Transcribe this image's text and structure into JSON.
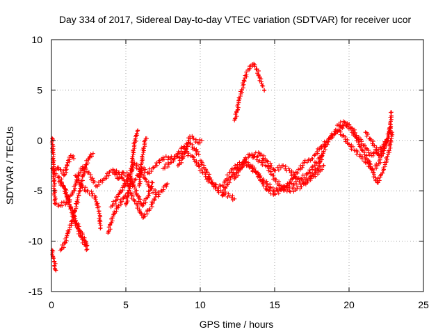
{
  "chart_data": {
    "type": "scatter",
    "title": "Day 334 of 2017, Sidereal Day-to-day VTEC variation (SDTVAR) for receiver ucor",
    "xlabel": "GPS time / hours",
    "ylabel": "SDTVAR / TECUs",
    "xlim": [
      0,
      25
    ],
    "ylim": [
      -15,
      10
    ],
    "x_ticks": [
      "0",
      "5",
      "10",
      "15",
      "20",
      "25"
    ],
    "y_ticks": [
      "10",
      "5",
      "0",
      "-5",
      "-10",
      "-15"
    ],
    "grid": true,
    "marker": "plus",
    "colors": {
      "series": "#ff0000",
      "grid": "#a0a0a0",
      "axes": "#000000"
    },
    "series": [
      {
        "name": "s1",
        "points": [
          [
            0.05,
            0.2
          ],
          [
            0.1,
            -1.0
          ],
          [
            0.15,
            -3.0
          ],
          [
            0.2,
            -5.0
          ],
          [
            0.25,
            -6.3
          ],
          [
            0.5,
            -6.4
          ],
          [
            1.0,
            -6.2
          ],
          [
            1.5,
            -5.0
          ],
          [
            1.8,
            -3.5
          ],
          [
            2.1,
            -2.6
          ],
          [
            2.5,
            -3.2
          ],
          [
            3.0,
            -4.5
          ],
          [
            3.6,
            -3.8
          ],
          [
            4.0,
            -3.0
          ],
          [
            4.5,
            -3.2
          ],
          [
            4.9,
            -4.0
          ],
          [
            5.3,
            -4.6
          ],
          [
            5.8,
            -3.5
          ],
          [
            6.1,
            -2.8
          ],
          [
            6.5,
            -3.2
          ],
          [
            7.0,
            -2.5
          ],
          [
            7.5,
            -1.7
          ],
          [
            8.0,
            -1.8
          ],
          [
            8.5,
            -1.6
          ],
          [
            9.0,
            -1.2
          ],
          [
            9.5,
            -1.6
          ],
          [
            9.9,
            -2.6
          ],
          [
            10.5,
            -3.8
          ],
          [
            11.0,
            -4.6
          ],
          [
            11.5,
            -4.5
          ],
          [
            12.0,
            -3.2
          ],
          [
            12.5,
            -2.4
          ],
          [
            13.0,
            -2.2
          ],
          [
            13.5,
            -2.8
          ],
          [
            14.0,
            -3.6
          ],
          [
            14.5,
            -4.3
          ],
          [
            15.0,
            -5.0
          ],
          [
            15.5,
            -4.8
          ],
          [
            16.0,
            -4.2
          ],
          [
            16.5,
            -3.2
          ],
          [
            17.0,
            -2.2
          ],
          [
            17.5,
            -1.8
          ],
          [
            18.0,
            -0.9
          ],
          [
            18.5,
            -0.1
          ],
          [
            19.0,
            0.6
          ],
          [
            19.5,
            1.3
          ],
          [
            20.0,
            1.6
          ],
          [
            20.5,
            0.5
          ],
          [
            21.0,
            -0.5
          ],
          [
            21.5,
            -1.5
          ],
          [
            22.0,
            -0.9
          ],
          [
            22.5,
            -0.2
          ],
          [
            22.75,
            1.0
          ],
          [
            22.85,
            2.8
          ]
        ]
      },
      {
        "name": "s2",
        "points": [
          [
            0.05,
            -10.9
          ],
          [
            0.1,
            -11.5
          ],
          [
            0.2,
            -12.0
          ],
          [
            0.25,
            -12.8
          ],
          [
            0.3,
            -12.9
          ]
        ]
      },
      {
        "name": "s3",
        "points": [
          [
            0.05,
            -2.8
          ],
          [
            0.2,
            -3.3
          ],
          [
            0.5,
            -3.6
          ],
          [
            0.9,
            -4.8
          ],
          [
            1.3,
            -6.6
          ],
          [
            1.7,
            -8.2
          ],
          [
            2.0,
            -9.2
          ],
          [
            2.3,
            -10.0
          ],
          [
            2.4,
            -10.4
          ]
        ]
      },
      {
        "name": "s4",
        "points": [
          [
            0.2,
            -3.0
          ],
          [
            0.4,
            -2.7
          ],
          [
            0.6,
            -2.9
          ],
          [
            0.9,
            -3.4
          ],
          [
            1.1,
            -2.2
          ],
          [
            1.3,
            -1.5
          ],
          [
            1.5,
            -1.8
          ]
        ]
      },
      {
        "name": "s5",
        "points": [
          [
            0.6,
            -10.9
          ],
          [
            0.9,
            -10.2
          ],
          [
            1.1,
            -9.2
          ],
          [
            1.4,
            -8.0
          ],
          [
            1.7,
            -6.3
          ],
          [
            1.9,
            -5.0
          ],
          [
            2.1,
            -3.6
          ],
          [
            2.3,
            -2.4
          ],
          [
            2.6,
            -1.6
          ],
          [
            2.8,
            -1.3
          ]
        ]
      },
      {
        "name": "s6",
        "points": [
          [
            0.5,
            -4.1
          ],
          [
            0.8,
            -4.5
          ],
          [
            1.1,
            -5.8
          ],
          [
            1.4,
            -7.3
          ],
          [
            1.7,
            -8.6
          ],
          [
            2.0,
            -9.6
          ],
          [
            2.3,
            -10.5
          ],
          [
            2.4,
            -10.8
          ]
        ]
      },
      {
        "name": "s7",
        "points": [
          [
            1.6,
            -3.5
          ],
          [
            2.0,
            -4.5
          ],
          [
            2.4,
            -5.0
          ],
          [
            2.9,
            -5.5
          ],
          [
            3.2,
            -7.0
          ],
          [
            3.3,
            -8.7
          ]
        ]
      },
      {
        "name": "s8",
        "points": [
          [
            3.8,
            -9.2
          ],
          [
            4.0,
            -8.2
          ],
          [
            4.2,
            -7.3
          ],
          [
            4.5,
            -6.5
          ],
          [
            4.9,
            -5.6
          ],
          [
            5.3,
            -5.2
          ],
          [
            5.7,
            -6.3
          ],
          [
            6.0,
            -7.2
          ],
          [
            6.2,
            -7.6
          ],
          [
            6.6,
            -6.8
          ],
          [
            7.0,
            -5.6
          ],
          [
            7.4,
            -5.0
          ],
          [
            7.8,
            -4.3
          ]
        ]
      },
      {
        "name": "s9",
        "points": [
          [
            4.0,
            -6.6
          ],
          [
            4.3,
            -6.0
          ],
          [
            4.6,
            -5.2
          ],
          [
            5.0,
            -4.3
          ],
          [
            5.3,
            -3.0
          ],
          [
            5.6,
            -2.3
          ],
          [
            6.0,
            -3.0
          ],
          [
            6.3,
            -3.8
          ],
          [
            6.7,
            -4.8
          ],
          [
            7.0,
            -5.2
          ]
        ]
      },
      {
        "name": "s10",
        "points": [
          [
            4.2,
            -3.0
          ],
          [
            4.5,
            -3.8
          ],
          [
            4.8,
            -3.2
          ],
          [
            5.2,
            -3.5
          ],
          [
            5.5,
            -4.4
          ],
          [
            5.8,
            -5.5
          ],
          [
            6.1,
            -6.5
          ],
          [
            6.5,
            -5.5
          ],
          [
            6.8,
            -4.2
          ]
        ]
      },
      {
        "name": "s11",
        "points": [
          [
            5.0,
            -6.4
          ],
          [
            5.2,
            -5.0
          ],
          [
            5.4,
            -3.0
          ],
          [
            5.5,
            -1.0
          ],
          [
            5.6,
            -0.2
          ],
          [
            5.7,
            0.5
          ],
          [
            5.8,
            1.0
          ]
        ]
      },
      {
        "name": "s12",
        "points": [
          [
            5.9,
            -4.5
          ],
          [
            6.0,
            -3.0
          ],
          [
            6.1,
            -1.8
          ],
          [
            6.2,
            -0.8
          ],
          [
            6.3,
            0.0
          ],
          [
            6.4,
            0.2
          ]
        ]
      },
      {
        "name": "s13",
        "points": [
          [
            7.5,
            -2.8
          ],
          [
            8.0,
            -2.2
          ],
          [
            8.5,
            -1.3
          ],
          [
            8.9,
            -0.6
          ],
          [
            9.3,
            -0.3
          ],
          [
            9.6,
            -0.8
          ],
          [
            9.9,
            -1.4
          ]
        ]
      },
      {
        "name": "s14",
        "points": [
          [
            8.5,
            -2.5
          ],
          [
            8.8,
            -1.8
          ],
          [
            9.1,
            -0.6
          ],
          [
            9.3,
            0.4
          ],
          [
            9.5,
            0.2
          ],
          [
            9.8,
            -0.2
          ],
          [
            10.1,
            0.0
          ]
        ]
      },
      {
        "name": "s15",
        "points": [
          [
            10.0,
            -2.0
          ],
          [
            10.4,
            -3.0
          ],
          [
            10.8,
            -4.2
          ],
          [
            11.2,
            -5.0
          ],
          [
            11.6,
            -5.4
          ],
          [
            12.0,
            -5.5
          ],
          [
            12.3,
            -5.8
          ]
        ]
      },
      {
        "name": "s16",
        "points": [
          [
            11.5,
            -5.5
          ],
          [
            11.8,
            -4.4
          ],
          [
            12.2,
            -3.4
          ],
          [
            12.6,
            -2.8
          ],
          [
            13.0,
            -2.2
          ],
          [
            13.4,
            -2.5
          ],
          [
            13.8,
            -3.2
          ],
          [
            14.2,
            -4.3
          ],
          [
            14.6,
            -5.0
          ],
          [
            15.0,
            -5.3
          ],
          [
            15.4,
            -4.9
          ],
          [
            15.8,
            -4.6
          ],
          [
            16.3,
            -4.3
          ],
          [
            16.8,
            -3.8
          ],
          [
            17.3,
            -3.2
          ],
          [
            17.8,
            -2.2
          ],
          [
            18.2,
            -1.5
          ]
        ]
      },
      {
        "name": "s17",
        "points": [
          [
            12.3,
            -3.8
          ],
          [
            12.7,
            -2.8
          ],
          [
            13.0,
            -1.9
          ],
          [
            13.3,
            -1.4
          ],
          [
            13.6,
            -1.6
          ],
          [
            14.0,
            -2.0
          ],
          [
            14.5,
            -2.6
          ],
          [
            15.0,
            -3.8
          ],
          [
            15.5,
            -4.7
          ],
          [
            16.0,
            -5.0
          ],
          [
            16.5,
            -4.8
          ],
          [
            17.0,
            -4.3
          ],
          [
            17.6,
            -3.6
          ],
          [
            18.0,
            -3.0
          ],
          [
            18.3,
            -2.5
          ]
        ]
      },
      {
        "name": "s18",
        "points": [
          [
            13.5,
            -1.5
          ],
          [
            14.0,
            -1.3
          ],
          [
            14.5,
            -2.1
          ],
          [
            15.0,
            -3.0
          ],
          [
            15.5,
            -2.5
          ],
          [
            16.0,
            -3.0
          ],
          [
            16.5,
            -3.8
          ],
          [
            17.0,
            -4.2
          ],
          [
            17.5,
            -3.5
          ],
          [
            18.0,
            -2.5
          ]
        ]
      },
      {
        "name": "s19",
        "points": [
          [
            12.3,
            2.0
          ],
          [
            12.5,
            3.0
          ],
          [
            12.6,
            4.0
          ],
          [
            12.8,
            5.0
          ],
          [
            13.0,
            6.2
          ],
          [
            13.2,
            7.0
          ],
          [
            13.4,
            7.4
          ],
          [
            13.6,
            7.6
          ],
          [
            13.8,
            7.1
          ],
          [
            14.0,
            6.2
          ],
          [
            14.2,
            5.4
          ],
          [
            14.3,
            5.0
          ]
        ]
      },
      {
        "name": "s20",
        "points": [
          [
            18.0,
            -2.3
          ],
          [
            18.4,
            -0.6
          ],
          [
            18.8,
            0.5
          ],
          [
            19.2,
            1.0
          ],
          [
            19.6,
            0.5
          ],
          [
            20.0,
            -0.4
          ],
          [
            20.4,
            -1.0
          ],
          [
            20.8,
            -1.6
          ],
          [
            21.2,
            -2.2
          ],
          [
            21.6,
            -2.9
          ],
          [
            22.0,
            -2.3
          ],
          [
            22.3,
            -1.0
          ],
          [
            22.6,
            0.0
          ]
        ]
      },
      {
        "name": "s21",
        "points": [
          [
            19.2,
            1.5
          ],
          [
            19.7,
            1.8
          ],
          [
            20.1,
            1.2
          ],
          [
            20.5,
            0.2
          ],
          [
            20.9,
            -1.0
          ],
          [
            21.3,
            -2.0
          ],
          [
            21.6,
            -3.2
          ],
          [
            21.9,
            -4.2
          ],
          [
            22.3,
            -3.0
          ],
          [
            22.7,
            -1.0
          ],
          [
            22.9,
            0.8
          ]
        ]
      },
      {
        "name": "s22",
        "points": [
          [
            21.1,
            0.8
          ],
          [
            21.4,
            0.2
          ],
          [
            21.7,
            -0.5
          ],
          [
            22.0,
            -1.5
          ],
          [
            22.3,
            -0.8
          ],
          [
            22.6,
            0.2
          ],
          [
            22.8,
            1.6
          ]
        ]
      }
    ]
  }
}
